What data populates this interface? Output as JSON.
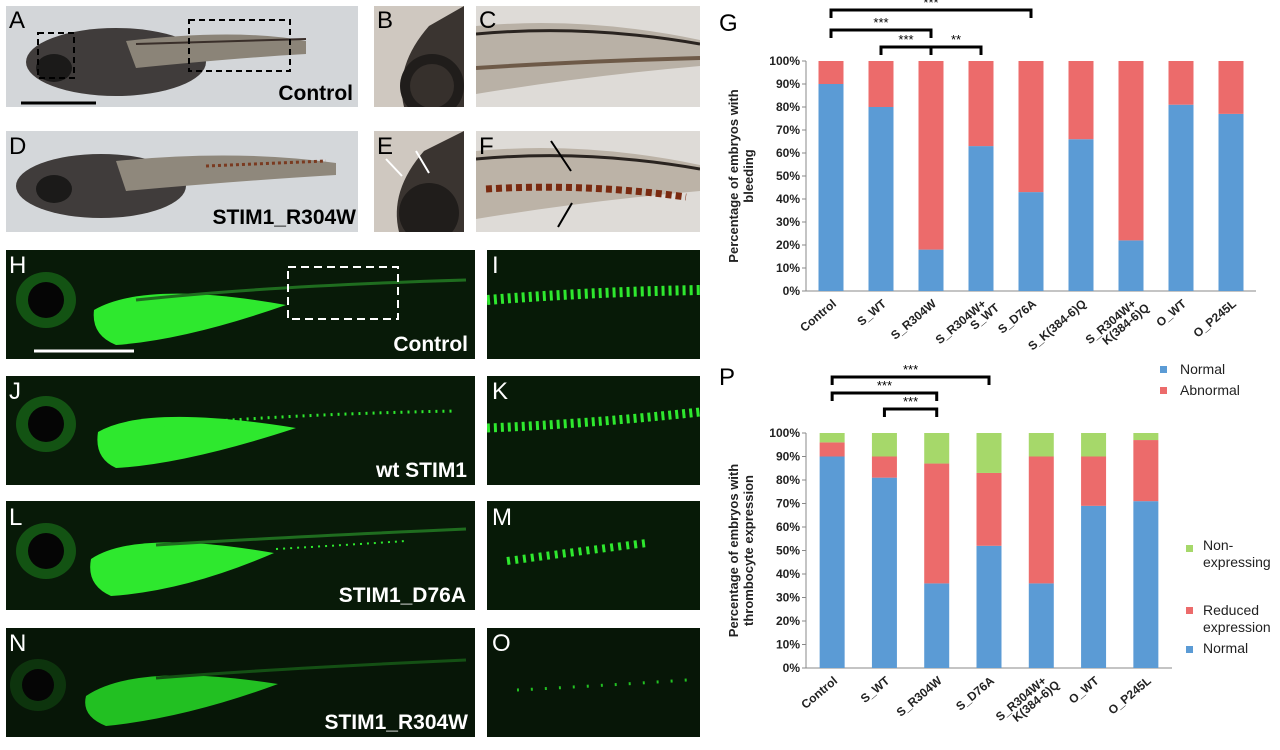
{
  "panels": {
    "A": "A",
    "B": "B",
    "C": "C",
    "D": "D",
    "E": "E",
    "F": "F",
    "G": "G",
    "H": "H",
    "I": "I",
    "J": "J",
    "K": "K",
    "L": "L",
    "M": "M",
    "N": "N",
    "O": "O",
    "P": "P"
  },
  "captions": {
    "control_bright": "Control",
    "stim1_r304w_bright": "STIM1_R304W",
    "control_fluor": "Control",
    "wt_stim1": "wt STIM1",
    "stim1_d76a": "STIM1_D76A",
    "stim1_r304w_fluor": "STIM1_R304W"
  },
  "colors": {
    "normal": "#5b9bd5",
    "abnormal": "#ec6b6b",
    "reduced": "#ec6b6b",
    "nonexpressing": "#a6d86a",
    "gfp": "#2ee82e"
  },
  "chart_data": [
    {
      "type": "bar",
      "stacked": true,
      "panel": "G",
      "ylabel": "Percentage of embryos with bleeding",
      "categories": [
        "Control",
        "S_WT",
        "S_R304W",
        "S_R304W+\nS_WT",
        "S_D76A",
        "S_K(384-6)Q",
        "S_R304W+\nK(384-6)Q",
        "O_WT",
        "O_P245L"
      ],
      "yticks": [
        "0%",
        "10%",
        "20%",
        "30%",
        "40%",
        "50%",
        "60%",
        "70%",
        "80%",
        "90%",
        "100%"
      ],
      "ylim": [
        0,
        100
      ],
      "series": [
        {
          "name": "Normal",
          "values": [
            90,
            80,
            18,
            63,
            43,
            66,
            22,
            81,
            77
          ]
        },
        {
          "name": "Abnormal",
          "values": [
            10,
            20,
            82,
            37,
            57,
            34,
            78,
            19,
            23
          ]
        }
      ],
      "significance": [
        {
          "from": 0,
          "to": 4,
          "label": "***"
        },
        {
          "from": 0,
          "to": 2,
          "label": "***"
        },
        {
          "from": 1,
          "to": 2,
          "label": "***"
        },
        {
          "from": 2,
          "to": 3,
          "label": "**"
        }
      ],
      "legend": [
        "Normal",
        "Abnormal"
      ],
      "legend_position": "right"
    },
    {
      "type": "bar",
      "stacked": true,
      "panel": "P",
      "ylabel": "Percentage of embryos with thrombocyte expression",
      "categories": [
        "Control",
        "S_WT",
        "S_R304W",
        "S_D76A",
        "S_R304W+\nK(384-6)Q",
        "O_WT",
        "O_P245L"
      ],
      "yticks": [
        "0%",
        "10%",
        "20%",
        "30%",
        "40%",
        "50%",
        "60%",
        "70%",
        "80%",
        "90%",
        "100%"
      ],
      "ylim": [
        0,
        100
      ],
      "series": [
        {
          "name": "Normal",
          "values": [
            90,
            81,
            36,
            52,
            36,
            69,
            71
          ]
        },
        {
          "name": "Reduced expression",
          "values": [
            6,
            9,
            51,
            31,
            54,
            21,
            26
          ]
        },
        {
          "name": "Non-expressing",
          "values": [
            4,
            10,
            13,
            17,
            10,
            10,
            3
          ]
        }
      ],
      "significance": [
        {
          "from": 0,
          "to": 3,
          "label": "***"
        },
        {
          "from": 0,
          "to": 2,
          "label": "***"
        },
        {
          "from": 1,
          "to": 2,
          "label": "***"
        }
      ],
      "legend": [
        "Non-\nexpressing",
        "Reduced\nexpression",
        "Normal"
      ],
      "legend_position": "right"
    }
  ]
}
